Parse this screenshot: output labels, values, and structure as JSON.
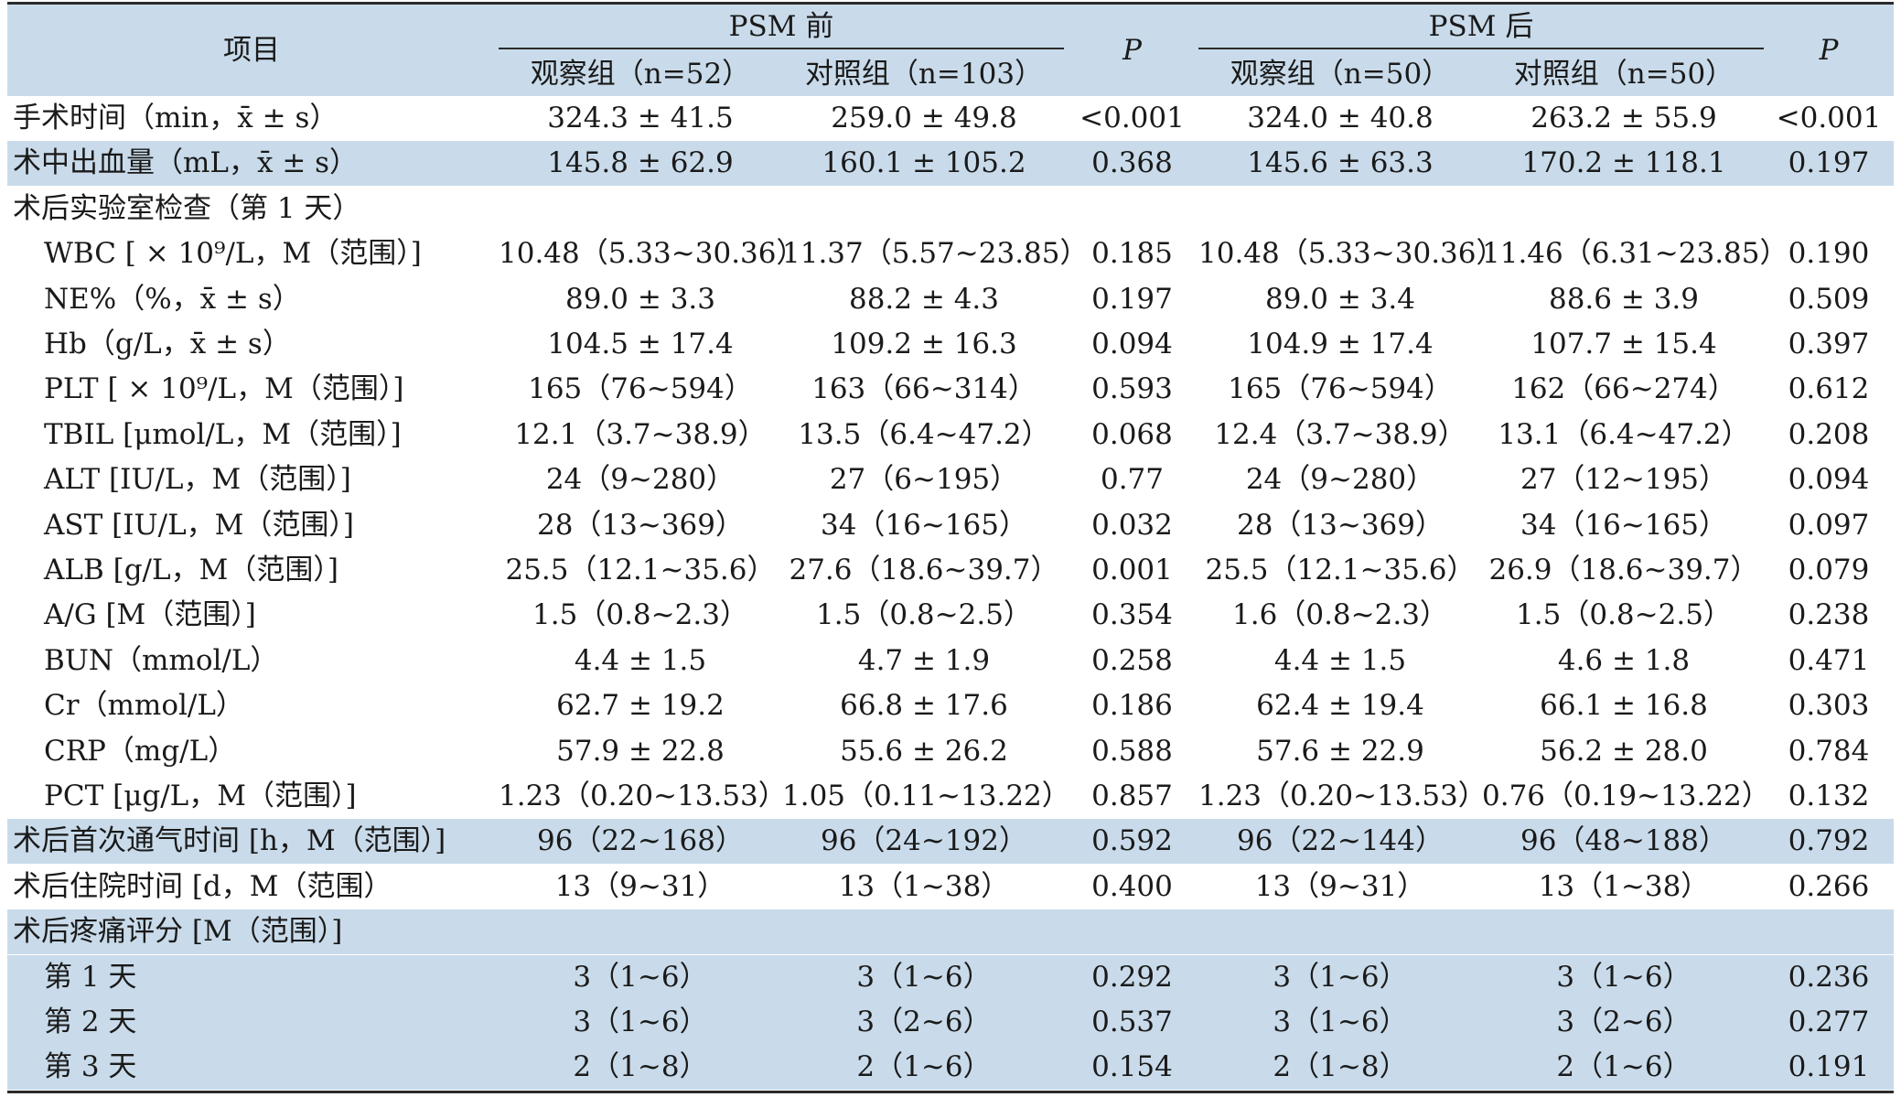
{
  "header": {
    "item": "项目",
    "before": "PSM 前",
    "after": "PSM 后",
    "p": "P",
    "obs_before": "观察组（n=52）",
    "ctl_before": "对照组（n=103）",
    "obs_after": "观察组（n=50）",
    "ctl_after": "对照组（n=50）"
  },
  "rows": [
    {
      "label": "手术时间（min，x̄ ± s）",
      "indent": false,
      "shade": false,
      "v": [
        "324.3 ± 41.5",
        "259.0 ± 49.8",
        "<0.001",
        "324.0 ± 40.8",
        "263.2 ± 55.9",
        "<0.001"
      ]
    },
    {
      "label": "术中出血量（mL，x̄ ± s）",
      "indent": false,
      "shade": true,
      "v": [
        "145.8 ± 62.9",
        "160.1 ± 105.2",
        "0.368",
        "145.6 ± 63.3",
        "170.2 ± 118.1",
        "0.197"
      ]
    },
    {
      "label": "术后实验室检查（第 1 天）",
      "indent": false,
      "shade": false,
      "v": [
        "",
        "",
        "",
        "",
        "",
        ""
      ]
    },
    {
      "label": "WBC [ × 10⁹/L，M（范围）]",
      "indent": true,
      "shade": false,
      "v": [
        "10.48（5.33~30.36）",
        "11.37（5.57~23.85）",
        "0.185",
        "10.48（5.33~30.36）",
        "11.46（6.31~23.85）",
        "0.190"
      ]
    },
    {
      "label": "NE%（%，x̄ ± s）",
      "indent": true,
      "shade": false,
      "v": [
        "89.0 ± 3.3",
        "88.2 ± 4.3",
        "0.197",
        "89.0 ± 3.4",
        "88.6 ± 3.9",
        "0.509"
      ]
    },
    {
      "label": "Hb（g/L，x̄ ± s）",
      "indent": true,
      "shade": false,
      "v": [
        "104.5 ± 17.4",
        "109.2 ± 16.3",
        "0.094",
        "104.9 ± 17.4",
        "107.7 ± 15.4",
        "0.397"
      ]
    },
    {
      "label": "PLT [ × 10⁹/L，M（范围）]",
      "indent": true,
      "shade": false,
      "v": [
        "165（76~594）",
        "163（66~314）",
        "0.593",
        "165（76~594）",
        "162（66~274）",
        "0.612"
      ]
    },
    {
      "label": "TBIL [μmol/L，M（范围）]",
      "indent": true,
      "shade": false,
      "v": [
        "12.1（3.7~38.9）",
        "13.5（6.4~47.2）",
        "0.068",
        "12.4（3.7~38.9）",
        "13.1（6.4~47.2）",
        "0.208"
      ]
    },
    {
      "label": "ALT [IU/L，M（范围）]",
      "indent": true,
      "shade": false,
      "v": [
        "24（9~280）",
        "27（6~195）",
        "0.77",
        "24（9~280）",
        "27（12~195）",
        "0.094"
      ]
    },
    {
      "label": "AST [IU/L，M（范围）]",
      "indent": true,
      "shade": false,
      "v": [
        "28（13~369）",
        "34（16~165）",
        "0.032",
        "28（13~369）",
        "34（16~165）",
        "0.097"
      ]
    },
    {
      "label": "ALB [g/L，M（范围）]",
      "indent": true,
      "shade": false,
      "v": [
        "25.5（12.1~35.6）",
        "27.6（18.6~39.7）",
        "0.001",
        "25.5（12.1~35.6）",
        "26.9（18.6~39.7）",
        "0.079"
      ]
    },
    {
      "label": "A/G [M（范围）]",
      "indent": true,
      "shade": false,
      "v": [
        "1.5（0.8~2.3）",
        "1.5（0.8~2.5）",
        "0.354",
        "1.6（0.8~2.3）",
        "1.5（0.8~2.5）",
        "0.238"
      ]
    },
    {
      "label": "BUN（mmol/L）",
      "indent": true,
      "shade": false,
      "v": [
        "4.4 ± 1.5",
        "4.7 ± 1.9",
        "0.258",
        "4.4 ± 1.5",
        "4.6 ± 1.8",
        "0.471"
      ]
    },
    {
      "label": "Cr（mmol/L）",
      "indent": true,
      "shade": false,
      "v": [
        "62.7 ± 19.2",
        "66.8 ± 17.6",
        "0.186",
        "62.4 ± 19.4",
        "66.1 ± 16.8",
        "0.303"
      ]
    },
    {
      "label": "CRP（mg/L）",
      "indent": true,
      "shade": false,
      "v": [
        "57.9 ± 22.8",
        "55.6 ± 26.2",
        "0.588",
        "57.6 ± 22.9",
        "56.2 ± 28.0",
        "0.784"
      ]
    },
    {
      "label": "PCT [μg/L，M（范围）]",
      "indent": true,
      "shade": false,
      "v": [
        "1.23（0.20~13.53）",
        "1.05（0.11~13.22）",
        "0.857",
        "1.23（0.20~13.53）",
        "0.76（0.19~13.22）",
        "0.132"
      ]
    },
    {
      "label": "术后首次通气时间 [h，M（范围）]",
      "indent": false,
      "shade": true,
      "v": [
        "96（22~168）",
        "96（24~192）",
        "0.592",
        "96（22~144）",
        "96（48~188）",
        "0.792"
      ]
    },
    {
      "label": "术后住院时间 [d，M（范围）",
      "indent": false,
      "shade": false,
      "v": [
        "13（9~31）",
        "13（1~38）",
        "0.400",
        "13（9~31）",
        "13（1~38）",
        "0.266"
      ]
    },
    {
      "label": "术后疼痛评分 [M（范围）]",
      "indent": false,
      "shade": true,
      "v": [
        "",
        "",
        "",
        "",
        "",
        ""
      ]
    },
    {
      "label": "第 1 天",
      "indent": true,
      "shade": true,
      "v": [
        "3（1~6）",
        "3（1~6）",
        "0.292",
        "3（1~6）",
        "3（1~6）",
        "0.236"
      ]
    },
    {
      "label": "第 2 天",
      "indent": true,
      "shade": true,
      "v": [
        "3（1~6）",
        "3（2~6）",
        "0.537",
        "3（1~6）",
        "3（2~6）",
        "0.277"
      ]
    },
    {
      "label": "第 3 天",
      "indent": true,
      "shade": true,
      "v": [
        "2（1~8）",
        "2（1~6）",
        "0.154",
        "2（1~8）",
        "2（1~6）",
        "0.191"
      ]
    }
  ]
}
